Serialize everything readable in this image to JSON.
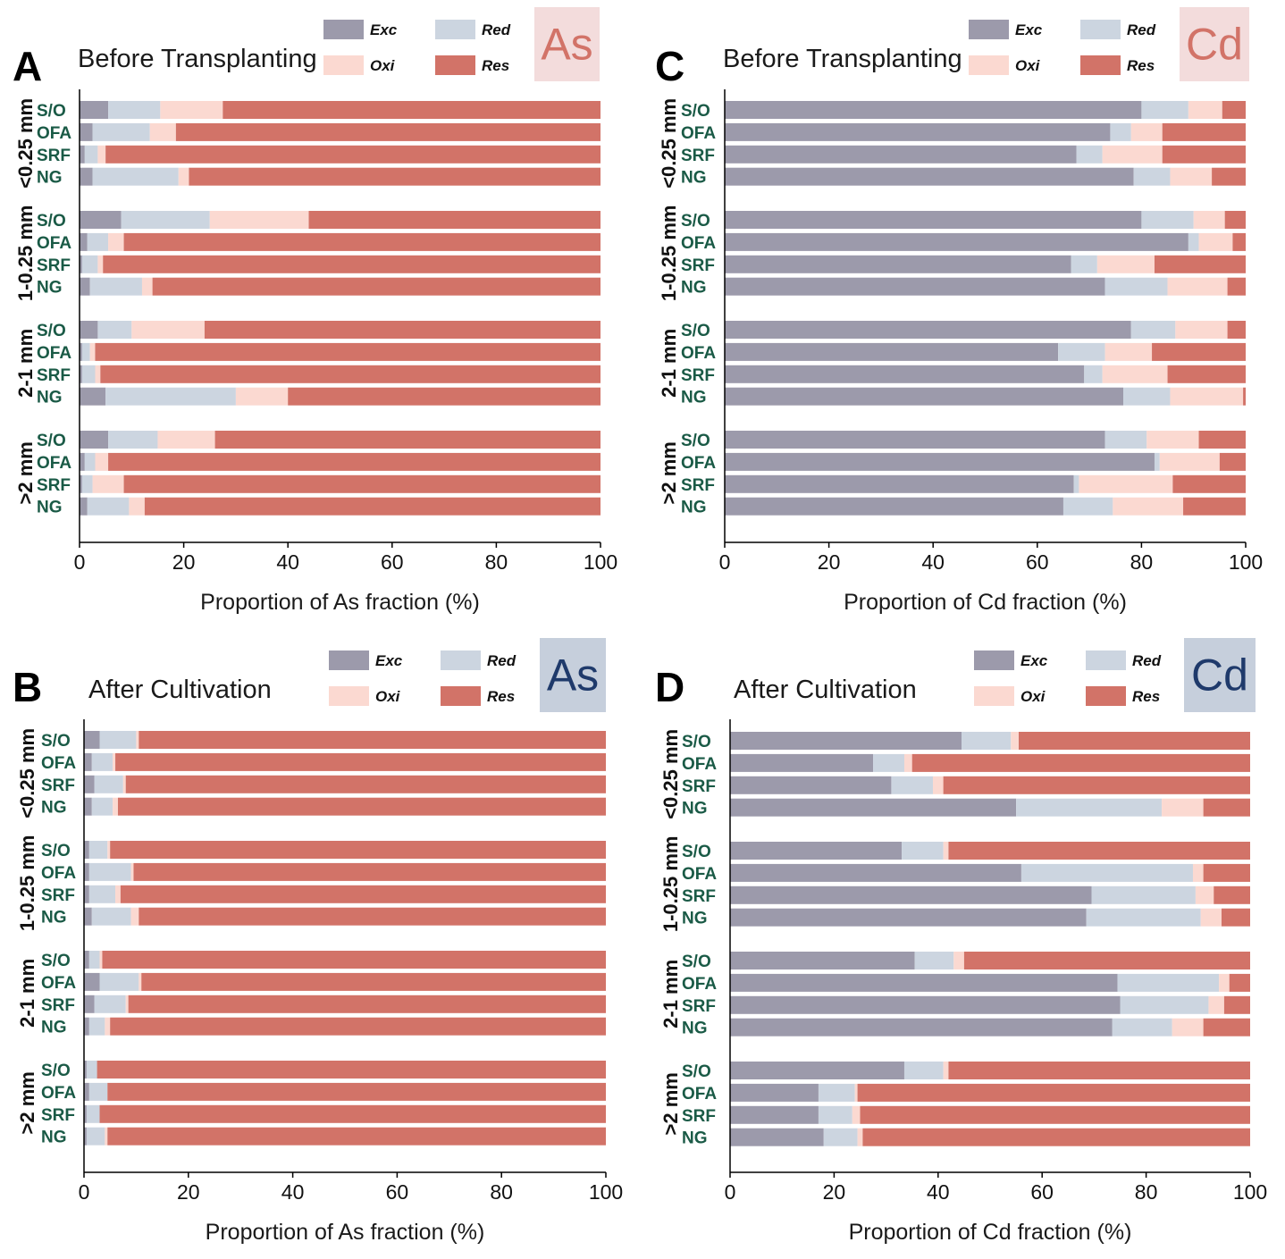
{
  "colors": {
    "Exc": "#9c9aab",
    "Red": "#ccd5e0",
    "Oxi": "#fbd9d1",
    "Res": "#d27368",
    "row_label": "#1a5a46",
    "badge_as_bg": "#f3dcdc",
    "badge_as_text": "#d27368",
    "badge_cd_bg_top": "#f3dcdc",
    "badge_cd_text_top": "#d27368",
    "badge_blue_bg": "#c6cfdc",
    "badge_blue_text": "#1f3a6b"
  },
  "legend": [
    "Exc",
    "Red",
    "Oxi",
    "Res"
  ],
  "chart_data": [
    {
      "type": "bar",
      "orientation": "horizontal",
      "stacked": true,
      "panel": "A",
      "subtitle": "Before Transplanting",
      "badge": "As",
      "xlabel": "Proportion of As fraction (%)",
      "xlim": [
        0,
        100
      ],
      "xticks": [
        "0",
        "20",
        "40",
        "60",
        "80",
        "100"
      ],
      "groups": [
        {
          "label": "<0.25 mm",
          "rows": [
            {
              "label": "S/O",
              "values": [
                5.5,
                10.0,
                12.0,
                72.5
              ]
            },
            {
              "label": "OFA",
              "values": [
                2.5,
                11.0,
                5.0,
                81.5
              ]
            },
            {
              "label": "SRF",
              "values": [
                1.0,
                2.5,
                1.5,
                95.0
              ]
            },
            {
              "label": "NG",
              "values": [
                2.5,
                16.5,
                2.0,
                79.0
              ]
            }
          ]
        },
        {
          "label": "1-0.25 mm",
          "rows": [
            {
              "label": "S/O",
              "values": [
                8.0,
                17.0,
                19.0,
                56.0
              ]
            },
            {
              "label": "OFA",
              "values": [
                1.5,
                4.0,
                3.0,
                91.5
              ]
            },
            {
              "label": "SRF",
              "values": [
                0.5,
                3.0,
                1.0,
                95.5
              ]
            },
            {
              "label": "NG",
              "values": [
                2.0,
                10.0,
                2.0,
                86.0
              ]
            }
          ]
        },
        {
          "label": "2-1 mm",
          "rows": [
            {
              "label": "S/O",
              "values": [
                3.5,
                6.5,
                14.0,
                76.0
              ]
            },
            {
              "label": "OFA",
              "values": [
                0.5,
                1.5,
                1.0,
                97.0
              ]
            },
            {
              "label": "SRF",
              "values": [
                0.5,
                2.5,
                1.0,
                96.0
              ]
            },
            {
              "label": "NG",
              "values": [
                5.0,
                25.0,
                10.0,
                60.0
              ]
            }
          ]
        },
        {
          "label": ">2 mm",
          "rows": [
            {
              "label": "S/O",
              "values": [
                5.5,
                9.5,
                11.0,
                74.0
              ]
            },
            {
              "label": "OFA",
              "values": [
                1.0,
                2.0,
                2.5,
                94.5
              ]
            },
            {
              "label": "SRF",
              "values": [
                0.5,
                2.0,
                6.0,
                91.5
              ]
            },
            {
              "label": "NG",
              "values": [
                1.5,
                8.0,
                3.0,
                87.5
              ]
            }
          ]
        }
      ]
    },
    {
      "type": "bar",
      "orientation": "horizontal",
      "stacked": true,
      "panel": "C",
      "subtitle": "Before Transplanting",
      "badge": "Cd",
      "xlabel": "Proportion of Cd fraction (%)",
      "xlim": [
        0,
        100
      ],
      "xticks": [
        "0",
        "20",
        "40",
        "60",
        "80",
        "100"
      ],
      "groups": [
        {
          "label": "<0.25 mm",
          "rows": [
            {
              "label": "S/O",
              "values": [
                80.0,
                9.0,
                6.5,
                4.5
              ]
            },
            {
              "label": "OFA",
              "values": [
                74.0,
                4.0,
                6.0,
                16.0
              ]
            },
            {
              "label": "SRF",
              "values": [
                67.5,
                5.0,
                11.5,
                16.0
              ]
            },
            {
              "label": "NG",
              "values": [
                78.5,
                7.0,
                8.0,
                6.5
              ]
            }
          ]
        },
        {
          "label": "1-0.25 mm",
          "rows": [
            {
              "label": "S/O",
              "values": [
                80.0,
                10.0,
                6.0,
                4.0
              ]
            },
            {
              "label": "OFA",
              "values": [
                89.0,
                2.0,
                6.5,
                2.5
              ]
            },
            {
              "label": "SRF",
              "values": [
                66.5,
                5.0,
                11.0,
                17.5
              ]
            },
            {
              "label": "NG",
              "values": [
                73.0,
                12.0,
                11.5,
                3.5
              ]
            }
          ]
        },
        {
          "label": "2-1 mm",
          "rows": [
            {
              "label": "S/O",
              "values": [
                78.0,
                8.5,
                10.0,
                3.5
              ]
            },
            {
              "label": "OFA",
              "values": [
                64.0,
                9.0,
                9.0,
                18.0
              ]
            },
            {
              "label": "SRF",
              "values": [
                69.0,
                3.5,
                12.5,
                15.0
              ]
            },
            {
              "label": "NG",
              "values": [
                76.5,
                9.0,
                14.0,
                0.5
              ]
            }
          ]
        },
        {
          "label": ">2 mm",
          "rows": [
            {
              "label": "S/O",
              "values": [
                73.0,
                8.0,
                10.0,
                9.0
              ]
            },
            {
              "label": "OFA",
              "values": [
                82.5,
                1.0,
                11.5,
                5.0
              ]
            },
            {
              "label": "SRF",
              "values": [
                67.0,
                1.0,
                18.0,
                14.0
              ]
            },
            {
              "label": "NG",
              "values": [
                65.0,
                9.5,
                13.5,
                12.0
              ]
            }
          ]
        }
      ]
    },
    {
      "type": "bar",
      "orientation": "horizontal",
      "stacked": true,
      "panel": "B",
      "subtitle": "After Cultivation",
      "badge": "As",
      "xlabel": "Proportion of As fraction (%)",
      "xlim": [
        0,
        100
      ],
      "xticks": [
        "0",
        "20",
        "40",
        "60",
        "80",
        "100"
      ],
      "groups": [
        {
          "label": "<0.25 mm",
          "rows": [
            {
              "label": "S/O",
              "values": [
                3.0,
                7.0,
                0.5,
                89.5
              ]
            },
            {
              "label": "OFA",
              "values": [
                1.5,
                4.0,
                0.5,
                94.0
              ]
            },
            {
              "label": "SRF",
              "values": [
                2.0,
                5.5,
                0.5,
                92.0
              ]
            },
            {
              "label": "NG",
              "values": [
                1.5,
                4.0,
                1.0,
                93.5
              ]
            }
          ]
        },
        {
          "label": "1-0.25 mm",
          "rows": [
            {
              "label": "S/O",
              "values": [
                1.0,
                3.5,
                0.5,
                95.0
              ]
            },
            {
              "label": "OFA",
              "values": [
                1.0,
                8.0,
                0.5,
                90.5
              ]
            },
            {
              "label": "SRF",
              "values": [
                1.0,
                5.0,
                1.0,
                93.0
              ]
            },
            {
              "label": "NG",
              "values": [
                1.5,
                7.5,
                1.5,
                89.5
              ]
            }
          ]
        },
        {
          "label": "2-1 mm",
          "rows": [
            {
              "label": "S/O",
              "values": [
                1.0,
                2.0,
                0.5,
                96.5
              ]
            },
            {
              "label": "OFA",
              "values": [
                3.0,
                7.5,
                0.5,
                89.0
              ]
            },
            {
              "label": "SRF",
              "values": [
                2.0,
                6.0,
                0.5,
                91.5
              ]
            },
            {
              "label": "NG",
              "values": [
                1.0,
                3.0,
                1.0,
                95.0
              ]
            }
          ]
        },
        {
          "label": ">2 mm",
          "rows": [
            {
              "label": "S/O",
              "values": [
                0.5,
                2.0,
                0.0,
                97.5
              ]
            },
            {
              "label": "OFA",
              "values": [
                1.0,
                3.5,
                0.0,
                95.5
              ]
            },
            {
              "label": "SRF",
              "values": [
                0.5,
                2.5,
                0.0,
                97.0
              ]
            },
            {
              "label": "NG",
              "values": [
                0.5,
                3.5,
                0.5,
                95.5
              ]
            }
          ]
        }
      ]
    },
    {
      "type": "bar",
      "orientation": "horizontal",
      "stacked": true,
      "panel": "D",
      "subtitle": "After Cultivation",
      "badge": "Cd",
      "xlabel": "Proportion of Cd fraction (%)",
      "xlim": [
        0,
        100
      ],
      "xticks": [
        "0",
        "20",
        "40",
        "60",
        "80",
        "100"
      ],
      "groups": [
        {
          "label": "<0.25 mm",
          "rows": [
            {
              "label": "S/O",
              "values": [
                44.5,
                9.5,
                1.5,
                44.5
              ]
            },
            {
              "label": "OFA",
              "values": [
                27.5,
                6.0,
                1.5,
                65.0
              ]
            },
            {
              "label": "SRF",
              "values": [
                31.0,
                8.0,
                2.0,
                59.0
              ]
            },
            {
              "label": "NG",
              "values": [
                55.0,
                28.0,
                8.0,
                9.0
              ]
            }
          ]
        },
        {
          "label": "1-0.25 mm",
          "rows": [
            {
              "label": "S/O",
              "values": [
                33.0,
                8.0,
                1.0,
                58.0
              ]
            },
            {
              "label": "OFA",
              "values": [
                56.0,
                33.0,
                2.0,
                9.0
              ]
            },
            {
              "label": "SRF",
              "values": [
                69.5,
                20.0,
                3.5,
                7.0
              ]
            },
            {
              "label": "NG",
              "values": [
                68.5,
                22.0,
                4.0,
                5.5
              ]
            }
          ]
        },
        {
          "label": "2-1 mm",
          "rows": [
            {
              "label": "S/O",
              "values": [
                35.5,
                7.5,
                2.0,
                55.0
              ]
            },
            {
              "label": "OFA",
              "values": [
                74.5,
                19.5,
                2.0,
                4.0
              ]
            },
            {
              "label": "SRF",
              "values": [
                75.0,
                17.0,
                3.0,
                5.0
              ]
            },
            {
              "label": "NG",
              "values": [
                73.5,
                11.5,
                6.0,
                9.0
              ]
            }
          ]
        },
        {
          "label": ">2 mm",
          "rows": [
            {
              "label": "S/O",
              "values": [
                33.5,
                7.5,
                1.0,
                58.0
              ]
            },
            {
              "label": "OFA",
              "values": [
                17.0,
                7.0,
                0.5,
                75.5
              ]
            },
            {
              "label": "SRF",
              "values": [
                17.0,
                6.5,
                1.5,
                75.0
              ]
            },
            {
              "label": "NG",
              "values": [
                18.0,
                6.5,
                1.0,
                74.5
              ]
            }
          ]
        }
      ]
    }
  ]
}
